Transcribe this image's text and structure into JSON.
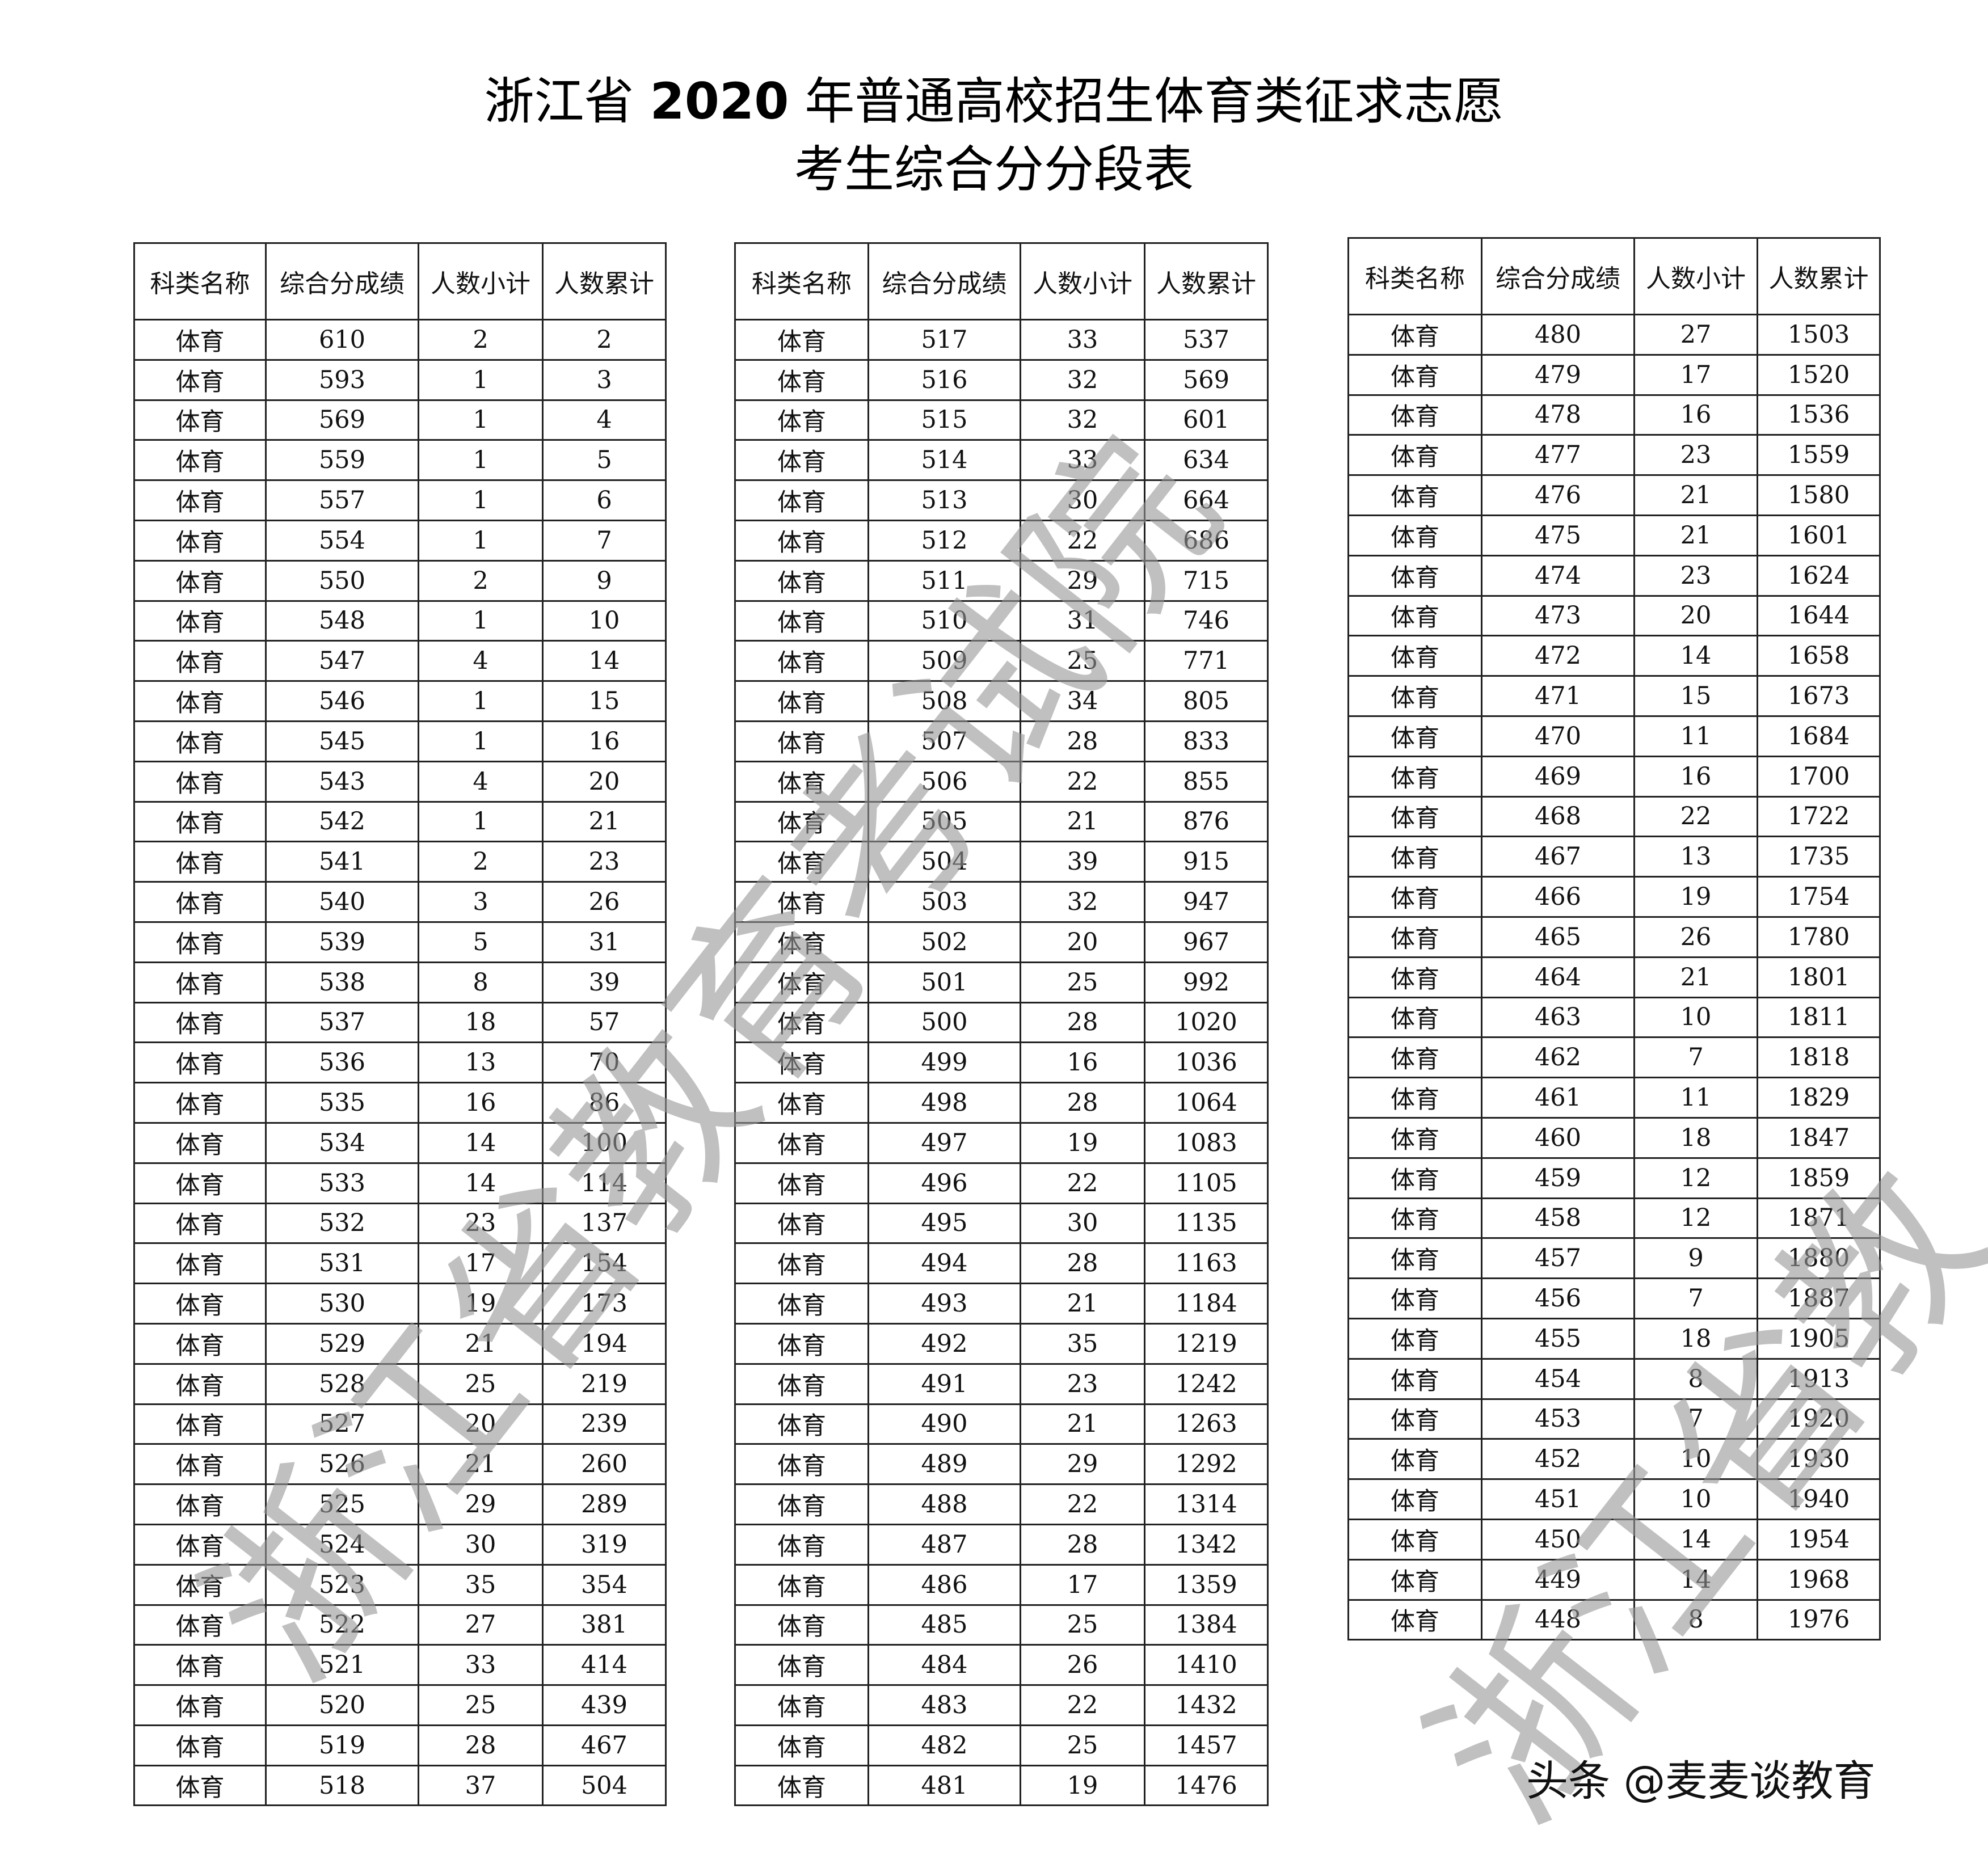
{
  "title": {
    "line1_prefix": "浙江省 ",
    "line1_year": "2020",
    "line1_suffix": " 年普通高校招生体育类征求志愿",
    "line2": "考生综合分分段表"
  },
  "headers": [
    "科类名称",
    "综合分成绩",
    "人数小计",
    "人数累计"
  ],
  "tables": [
    [
      [
        "体育",
        "610",
        "2",
        "2"
      ],
      [
        "体育",
        "593",
        "1",
        "3"
      ],
      [
        "体育",
        "569",
        "1",
        "4"
      ],
      [
        "体育",
        "559",
        "1",
        "5"
      ],
      [
        "体育",
        "557",
        "1",
        "6"
      ],
      [
        "体育",
        "554",
        "1",
        "7"
      ],
      [
        "体育",
        "550",
        "2",
        "9"
      ],
      [
        "体育",
        "548",
        "1",
        "10"
      ],
      [
        "体育",
        "547",
        "4",
        "14"
      ],
      [
        "体育",
        "546",
        "1",
        "15"
      ],
      [
        "体育",
        "545",
        "1",
        "16"
      ],
      [
        "体育",
        "543",
        "4",
        "20"
      ],
      [
        "体育",
        "542",
        "1",
        "21"
      ],
      [
        "体育",
        "541",
        "2",
        "23"
      ],
      [
        "体育",
        "540",
        "3",
        "26"
      ],
      [
        "体育",
        "539",
        "5",
        "31"
      ],
      [
        "体育",
        "538",
        "8",
        "39"
      ],
      [
        "体育",
        "537",
        "18",
        "57"
      ],
      [
        "体育",
        "536",
        "13",
        "70"
      ],
      [
        "体育",
        "535",
        "16",
        "86"
      ],
      [
        "体育",
        "534",
        "14",
        "100"
      ],
      [
        "体育",
        "533",
        "14",
        "114"
      ],
      [
        "体育",
        "532",
        "23",
        "137"
      ],
      [
        "体育",
        "531",
        "17",
        "154"
      ],
      [
        "体育",
        "530",
        "19",
        "173"
      ],
      [
        "体育",
        "529",
        "21",
        "194"
      ],
      [
        "体育",
        "528",
        "25",
        "219"
      ],
      [
        "体育",
        "527",
        "20",
        "239"
      ],
      [
        "体育",
        "526",
        "21",
        "260"
      ],
      [
        "体育",
        "525",
        "29",
        "289"
      ],
      [
        "体育",
        "524",
        "30",
        "319"
      ],
      [
        "体育",
        "523",
        "35",
        "354"
      ],
      [
        "体育",
        "522",
        "27",
        "381"
      ],
      [
        "体育",
        "521",
        "33",
        "414"
      ],
      [
        "体育",
        "520",
        "25",
        "439"
      ],
      [
        "体育",
        "519",
        "28",
        "467"
      ],
      [
        "体育",
        "518",
        "37",
        "504"
      ]
    ],
    [
      [
        "体育",
        "517",
        "33",
        "537"
      ],
      [
        "体育",
        "516",
        "32",
        "569"
      ],
      [
        "体育",
        "515",
        "32",
        "601"
      ],
      [
        "体育",
        "514",
        "33",
        "634"
      ],
      [
        "体育",
        "513",
        "30",
        "664"
      ],
      [
        "体育",
        "512",
        "22",
        "686"
      ],
      [
        "体育",
        "511",
        "29",
        "715"
      ],
      [
        "体育",
        "510",
        "31",
        "746"
      ],
      [
        "体育",
        "509",
        "25",
        "771"
      ],
      [
        "体育",
        "508",
        "34",
        "805"
      ],
      [
        "体育",
        "507",
        "28",
        "833"
      ],
      [
        "体育",
        "506",
        "22",
        "855"
      ],
      [
        "体育",
        "505",
        "21",
        "876"
      ],
      [
        "体育",
        "504",
        "39",
        "915"
      ],
      [
        "体育",
        "503",
        "32",
        "947"
      ],
      [
        "体育",
        "502",
        "20",
        "967"
      ],
      [
        "体育",
        "501",
        "25",
        "992"
      ],
      [
        "体育",
        "500",
        "28",
        "1020"
      ],
      [
        "体育",
        "499",
        "16",
        "1036"
      ],
      [
        "体育",
        "498",
        "28",
        "1064"
      ],
      [
        "体育",
        "497",
        "19",
        "1083"
      ],
      [
        "体育",
        "496",
        "22",
        "1105"
      ],
      [
        "体育",
        "495",
        "30",
        "1135"
      ],
      [
        "体育",
        "494",
        "28",
        "1163"
      ],
      [
        "体育",
        "493",
        "21",
        "1184"
      ],
      [
        "体育",
        "492",
        "35",
        "1219"
      ],
      [
        "体育",
        "491",
        "23",
        "1242"
      ],
      [
        "体育",
        "490",
        "21",
        "1263"
      ],
      [
        "体育",
        "489",
        "29",
        "1292"
      ],
      [
        "体育",
        "488",
        "22",
        "1314"
      ],
      [
        "体育",
        "487",
        "28",
        "1342"
      ],
      [
        "体育",
        "486",
        "17",
        "1359"
      ],
      [
        "体育",
        "485",
        "25",
        "1384"
      ],
      [
        "体育",
        "484",
        "26",
        "1410"
      ],
      [
        "体育",
        "483",
        "22",
        "1432"
      ],
      [
        "体育",
        "482",
        "25",
        "1457"
      ],
      [
        "体育",
        "481",
        "19",
        "1476"
      ]
    ],
    [
      [
        "体育",
        "480",
        "27",
        "1503"
      ],
      [
        "体育",
        "479",
        "17",
        "1520"
      ],
      [
        "体育",
        "478",
        "16",
        "1536"
      ],
      [
        "体育",
        "477",
        "23",
        "1559"
      ],
      [
        "体育",
        "476",
        "21",
        "1580"
      ],
      [
        "体育",
        "475",
        "21",
        "1601"
      ],
      [
        "体育",
        "474",
        "23",
        "1624"
      ],
      [
        "体育",
        "473",
        "20",
        "1644"
      ],
      [
        "体育",
        "472",
        "14",
        "1658"
      ],
      [
        "体育",
        "471",
        "15",
        "1673"
      ],
      [
        "体育",
        "470",
        "11",
        "1684"
      ],
      [
        "体育",
        "469",
        "16",
        "1700"
      ],
      [
        "体育",
        "468",
        "22",
        "1722"
      ],
      [
        "体育",
        "467",
        "13",
        "1735"
      ],
      [
        "体育",
        "466",
        "19",
        "1754"
      ],
      [
        "体育",
        "465",
        "26",
        "1780"
      ],
      [
        "体育",
        "464",
        "21",
        "1801"
      ],
      [
        "体育",
        "463",
        "10",
        "1811"
      ],
      [
        "体育",
        "462",
        "7",
        "1818"
      ],
      [
        "体育",
        "461",
        "11",
        "1829"
      ],
      [
        "体育",
        "460",
        "18",
        "1847"
      ],
      [
        "体育",
        "459",
        "12",
        "1859"
      ],
      [
        "体育",
        "458",
        "12",
        "1871"
      ],
      [
        "体育",
        "457",
        "9",
        "1880"
      ],
      [
        "体育",
        "456",
        "7",
        "1887"
      ],
      [
        "体育",
        "455",
        "18",
        "1905"
      ],
      [
        "体育",
        "454",
        "8",
        "1913"
      ],
      [
        "体育",
        "453",
        "7",
        "1920"
      ],
      [
        "体育",
        "452",
        "10",
        "1930"
      ],
      [
        "体育",
        "451",
        "10",
        "1940"
      ],
      [
        "体育",
        "450",
        "14",
        "1954"
      ],
      [
        "体育",
        "449",
        "14",
        "1968"
      ],
      [
        "体育",
        "448",
        "8",
        "1976"
      ]
    ]
  ],
  "watermark": {
    "text": "浙江省教育考试院",
    "partial_text": "浙江省教"
  },
  "footer": "头条 @麦麦谈教育"
}
